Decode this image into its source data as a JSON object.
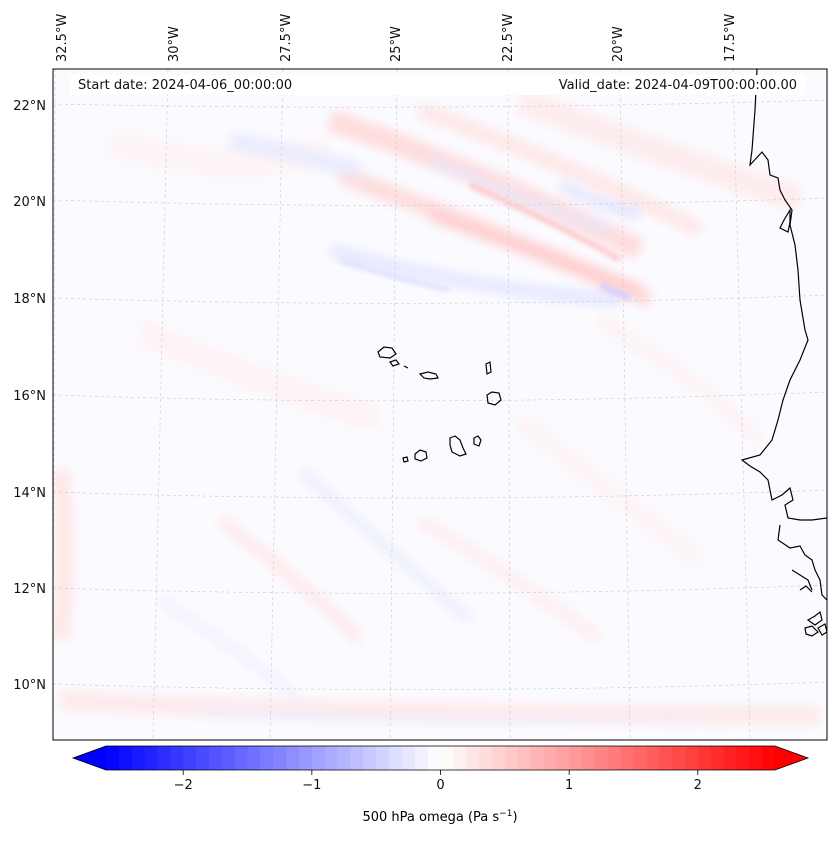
{
  "info": {
    "start_label": "Start date: 2024-04-06_00:00:00",
    "valid_label": "Valid_date: 2024-04-09T00:00:00.00"
  },
  "map": {
    "lon_labels": [
      "32.5°W",
      "30°W",
      "27.5°W",
      "25°W",
      "22.5°W",
      "20°W",
      "17.5°W"
    ],
    "lat_labels": [
      "22°N",
      "20°N",
      "18°N",
      "16°N",
      "14°N",
      "12°N",
      "10°N"
    ]
  },
  "colorbar": {
    "label_main": "500 hPa omega (Pa s",
    "label_exp": "−1",
    "label_close": ")",
    "ticks": [
      "−2",
      "−1",
      "0",
      "1",
      "2"
    ],
    "tick_values": [
      -2,
      -1,
      0,
      1,
      2
    ],
    "min": -2.6,
    "max": 2.6,
    "colors": {
      "low": "#0000ff",
      "mid": "#ffffff",
      "high": "#ff0000"
    }
  }
}
